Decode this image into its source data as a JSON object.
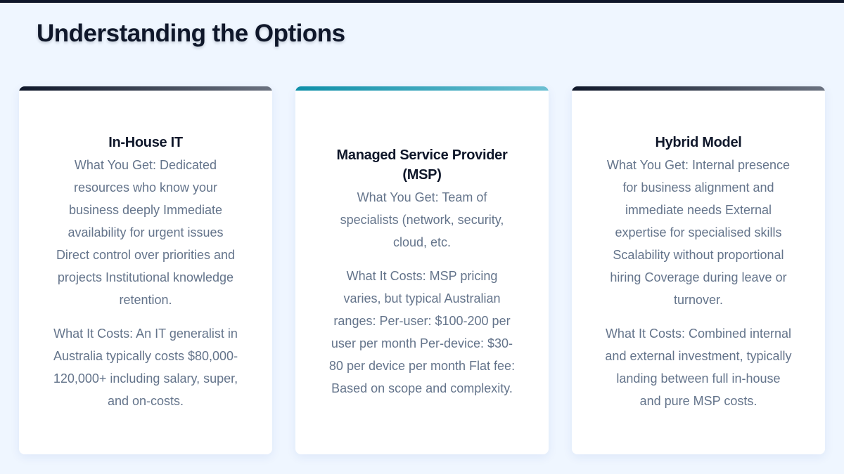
{
  "page": {
    "title": "Understanding the Options"
  },
  "colors": {
    "dark_accent": "#0f172a",
    "teal_accent": "#0e8fa8",
    "background": "#eff6ff"
  },
  "cards": [
    {
      "title": "In-House IT",
      "get": "What You Get: Dedicated resources who know your business deeply Immediate availability for urgent issues Direct control over priorities and projects Institutional knowledge retention.",
      "costs": "What It Costs: An IT generalist in Australia typically costs $80,000-120,000+ including salary, super, and on-costs."
    },
    {
      "title": "Managed Service Provider (MSP)",
      "get": "What You Get: Team of specialists (network, security, cloud, etc.",
      "costs": "What It Costs: MSP pricing varies, but typical Australian ranges: Per-user: $100-200 per user per month Per-device: $30-80 per device per month Flat fee: Based on scope and complexity."
    },
    {
      "title": "Hybrid Model",
      "get": "What You Get: Internal presence for business alignment and immediate needs External expertise for specialised skills Scalability without proportional hiring Coverage during leave or turnover.",
      "costs": "What It Costs: Combined internal and external investment, typically landing between full in-house and pure MSP costs."
    }
  ]
}
